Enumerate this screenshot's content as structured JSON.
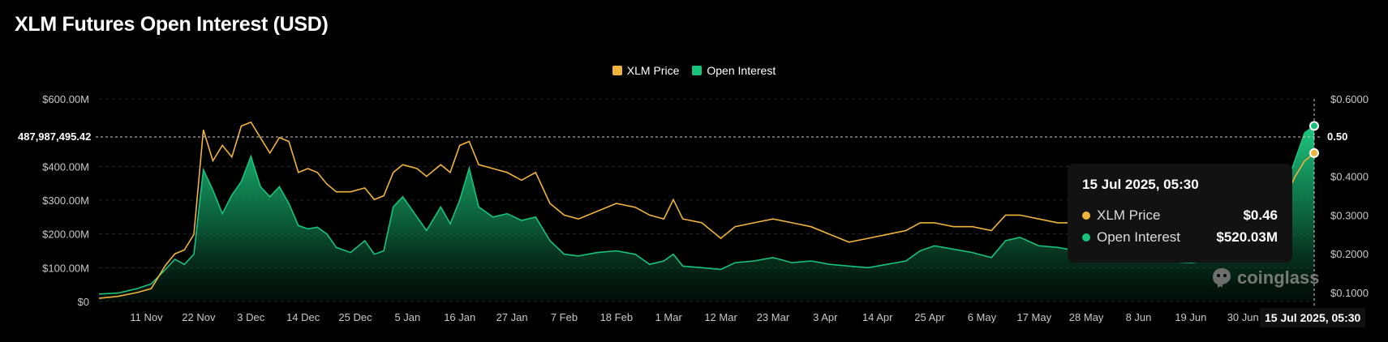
{
  "title": "XLM Futures Open Interest (USD)",
  "legend": [
    {
      "label": "XLM Price",
      "color": "#f0b43c"
    },
    {
      "label": "Open Interest",
      "color": "#17c37b"
    }
  ],
  "crosshair": {
    "y_label": "487,987,495.42",
    "y_right_label": "0.50",
    "x_label": "15 Jul 2025, 05:30"
  },
  "tooltip": {
    "date": "15 Jul 2025, 05:30",
    "rows": [
      {
        "name": "XLM Price",
        "value": "$0.46",
        "color": "#f0b43c"
      },
      {
        "name": "Open Interest",
        "value": "$520.03M",
        "color": "#17c37b"
      }
    ]
  },
  "watermark": "coinglass",
  "chart_data": {
    "type": "area",
    "title": "XLM Futures Open Interest (USD)",
    "x_tick_labels": [
      "11 Nov",
      "22 Nov",
      "3 Dec",
      "14 Dec",
      "25 Dec",
      "5 Jan",
      "16 Jan",
      "27 Jan",
      "7 Feb",
      "18 Feb",
      "1 Mar",
      "12 Mar",
      "23 Mar",
      "3 Apr",
      "14 Apr",
      "25 Apr",
      "6 May",
      "17 May",
      "28 May",
      "8 Jun",
      "19 Jun",
      "30 Jun"
    ],
    "y_left": {
      "ticks": [
        "$0",
        "$100.00M",
        "$200.00M",
        "$300.00M",
        "$400.00M",
        "$600.00M"
      ],
      "range": [
        0,
        600000000
      ]
    },
    "y_right": {
      "ticks": [
        "$0.1000",
        "$0.2000",
        "$0.3000",
        "$0.4000",
        "$0.6000"
      ],
      "range": [
        0.0769,
        0.6
      ]
    },
    "grid": true,
    "legend_position": "top-center",
    "series": [
      {
        "name": "Open Interest",
        "axis": "left",
        "color": "#17c37b",
        "points": [
          [
            "2024-11-01",
            22
          ],
          [
            "2024-11-05",
            25
          ],
          [
            "2024-11-09",
            38
          ],
          [
            "2024-11-12",
            52
          ],
          [
            "2024-11-15",
            95
          ],
          [
            "2024-11-17",
            125
          ],
          [
            "2024-11-19",
            110
          ],
          [
            "2024-11-21",
            140
          ],
          [
            "2024-11-23",
            390
          ],
          [
            "2024-11-25",
            330
          ],
          [
            "2024-11-27",
            260
          ],
          [
            "2024-11-29",
            315
          ],
          [
            "2024-12-01",
            355
          ],
          [
            "2024-12-03",
            430
          ],
          [
            "2024-12-05",
            340
          ],
          [
            "2024-12-07",
            310
          ],
          [
            "2024-12-09",
            340
          ],
          [
            "2024-12-11",
            290
          ],
          [
            "2024-12-13",
            225
          ],
          [
            "2024-12-15",
            215
          ],
          [
            "2024-12-17",
            220
          ],
          [
            "2024-12-19",
            200
          ],
          [
            "2024-12-21",
            160
          ],
          [
            "2024-12-24",
            145
          ],
          [
            "2024-12-27",
            180
          ],
          [
            "2024-12-29",
            140
          ],
          [
            "2024-12-31",
            150
          ],
          [
            "2025-01-02",
            280
          ],
          [
            "2025-01-04",
            310
          ],
          [
            "2025-01-07",
            250
          ],
          [
            "2025-01-09",
            210
          ],
          [
            "2025-01-12",
            280
          ],
          [
            "2025-01-14",
            230
          ],
          [
            "2025-01-16",
            300
          ],
          [
            "2025-01-18",
            395
          ],
          [
            "2025-01-20",
            280
          ],
          [
            "2025-01-23",
            250
          ],
          [
            "2025-01-26",
            260
          ],
          [
            "2025-01-29",
            240
          ],
          [
            "2025-02-01",
            250
          ],
          [
            "2025-02-04",
            180
          ],
          [
            "2025-02-07",
            140
          ],
          [
            "2025-02-10",
            135
          ],
          [
            "2025-02-14",
            145
          ],
          [
            "2025-02-18",
            150
          ],
          [
            "2025-02-22",
            140
          ],
          [
            "2025-02-25",
            110
          ],
          [
            "2025-02-28",
            120
          ],
          [
            "2025-03-02",
            140
          ],
          [
            "2025-03-04",
            105
          ],
          [
            "2025-03-08",
            100
          ],
          [
            "2025-03-12",
            95
          ],
          [
            "2025-03-15",
            115
          ],
          [
            "2025-03-19",
            120
          ],
          [
            "2025-03-23",
            130
          ],
          [
            "2025-03-27",
            115
          ],
          [
            "2025-03-31",
            120
          ],
          [
            "2025-04-04",
            110
          ],
          [
            "2025-04-08",
            105
          ],
          [
            "2025-04-12",
            100
          ],
          [
            "2025-04-16",
            110
          ],
          [
            "2025-04-20",
            120
          ],
          [
            "2025-04-23",
            150
          ],
          [
            "2025-04-26",
            165
          ],
          [
            "2025-04-30",
            155
          ],
          [
            "2025-05-04",
            145
          ],
          [
            "2025-05-08",
            130
          ],
          [
            "2025-05-11",
            180
          ],
          [
            "2025-05-14",
            190
          ],
          [
            "2025-05-18",
            165
          ],
          [
            "2025-05-22",
            160
          ],
          [
            "2025-05-26",
            150
          ],
          [
            "2025-05-30",
            140
          ],
          [
            "2025-06-05",
            130
          ],
          [
            "2025-06-12",
            120
          ],
          [
            "2025-06-19",
            115
          ],
          [
            "2025-06-26",
            125
          ],
          [
            "2025-07-01",
            140
          ],
          [
            "2025-07-05",
            200
          ],
          [
            "2025-07-08",
            300
          ],
          [
            "2025-07-11",
            420
          ],
          [
            "2025-07-13",
            500
          ],
          [
            "2025-07-15",
            520
          ]
        ]
      },
      {
        "name": "XLM Price",
        "axis": "right",
        "color": "#f0b43c",
        "points": [
          [
            "2024-11-01",
            0.085
          ],
          [
            "2024-11-05",
            0.09
          ],
          [
            "2024-11-09",
            0.1
          ],
          [
            "2024-11-12",
            0.11
          ],
          [
            "2024-11-15",
            0.17
          ],
          [
            "2024-11-17",
            0.2
          ],
          [
            "2024-11-19",
            0.21
          ],
          [
            "2024-11-21",
            0.25
          ],
          [
            "2024-11-23",
            0.52
          ],
          [
            "2024-11-25",
            0.44
          ],
          [
            "2024-11-27",
            0.48
          ],
          [
            "2024-11-29",
            0.45
          ],
          [
            "2024-12-01",
            0.53
          ],
          [
            "2024-12-03",
            0.54
          ],
          [
            "2024-12-05",
            0.5
          ],
          [
            "2024-12-07",
            0.46
          ],
          [
            "2024-12-09",
            0.5
          ],
          [
            "2024-12-11",
            0.49
          ],
          [
            "2024-12-13",
            0.41
          ],
          [
            "2024-12-15",
            0.42
          ],
          [
            "2024-12-17",
            0.41
          ],
          [
            "2024-12-19",
            0.38
          ],
          [
            "2024-12-21",
            0.36
          ],
          [
            "2024-12-24",
            0.36
          ],
          [
            "2024-12-27",
            0.37
          ],
          [
            "2024-12-29",
            0.34
          ],
          [
            "2024-12-31",
            0.35
          ],
          [
            "2025-01-02",
            0.41
          ],
          [
            "2025-01-04",
            0.43
          ],
          [
            "2025-01-07",
            0.42
          ],
          [
            "2025-01-09",
            0.4
          ],
          [
            "2025-01-12",
            0.43
          ],
          [
            "2025-01-14",
            0.41
          ],
          [
            "2025-01-16",
            0.48
          ],
          [
            "2025-01-18",
            0.49
          ],
          [
            "2025-01-20",
            0.43
          ],
          [
            "2025-01-23",
            0.42
          ],
          [
            "2025-01-26",
            0.41
          ],
          [
            "2025-01-29",
            0.39
          ],
          [
            "2025-02-01",
            0.41
          ],
          [
            "2025-02-04",
            0.33
          ],
          [
            "2025-02-07",
            0.3
          ],
          [
            "2025-02-10",
            0.29
          ],
          [
            "2025-02-14",
            0.31
          ],
          [
            "2025-02-18",
            0.33
          ],
          [
            "2025-02-22",
            0.32
          ],
          [
            "2025-02-25",
            0.3
          ],
          [
            "2025-02-28",
            0.29
          ],
          [
            "2025-03-02",
            0.34
          ],
          [
            "2025-03-04",
            0.29
          ],
          [
            "2025-03-08",
            0.28
          ],
          [
            "2025-03-12",
            0.24
          ],
          [
            "2025-03-15",
            0.27
          ],
          [
            "2025-03-19",
            0.28
          ],
          [
            "2025-03-23",
            0.29
          ],
          [
            "2025-03-27",
            0.28
          ],
          [
            "2025-03-31",
            0.27
          ],
          [
            "2025-04-04",
            0.25
          ],
          [
            "2025-04-08",
            0.23
          ],
          [
            "2025-04-12",
            0.24
          ],
          [
            "2025-04-16",
            0.25
          ],
          [
            "2025-04-20",
            0.26
          ],
          [
            "2025-04-23",
            0.28
          ],
          [
            "2025-04-26",
            0.28
          ],
          [
            "2025-04-30",
            0.27
          ],
          [
            "2025-05-04",
            0.27
          ],
          [
            "2025-05-08",
            0.26
          ],
          [
            "2025-05-11",
            0.3
          ],
          [
            "2025-05-14",
            0.3
          ],
          [
            "2025-05-18",
            0.29
          ],
          [
            "2025-05-22",
            0.28
          ],
          [
            "2025-05-26",
            0.28
          ],
          [
            "2025-05-30",
            0.27
          ],
          [
            "2025-06-05",
            0.26
          ],
          [
            "2025-06-12",
            0.25
          ],
          [
            "2025-06-19",
            0.24
          ],
          [
            "2025-06-26",
            0.24
          ],
          [
            "2025-07-01",
            0.25
          ],
          [
            "2025-07-05",
            0.28
          ],
          [
            "2025-07-08",
            0.32
          ],
          [
            "2025-07-11",
            0.4
          ],
          [
            "2025-07-13",
            0.44
          ],
          [
            "2025-07-15",
            0.46
          ]
        ]
      }
    ]
  }
}
